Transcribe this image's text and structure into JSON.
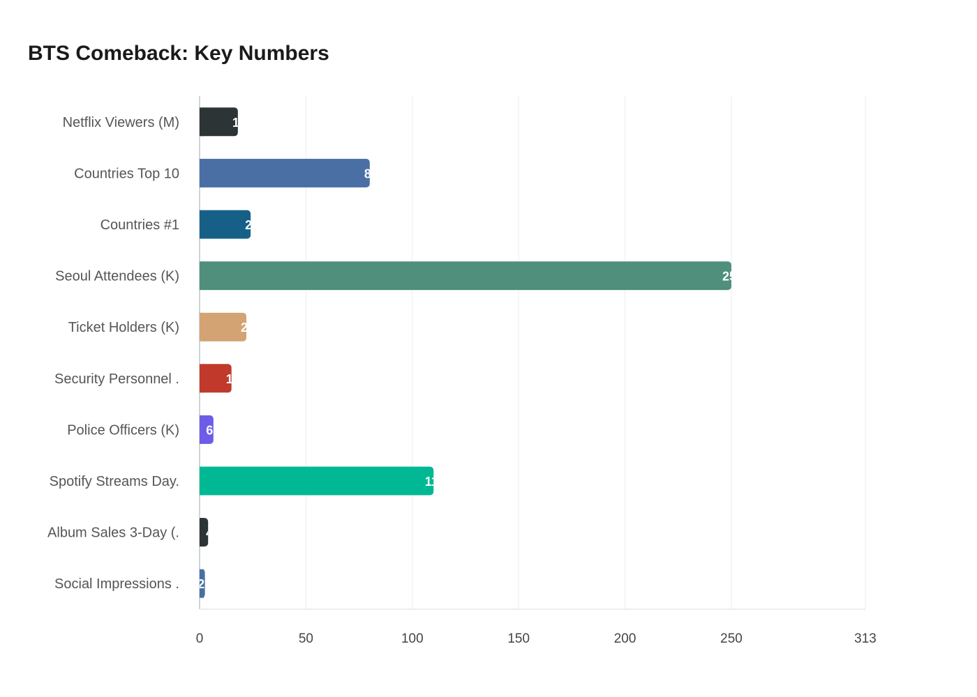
{
  "chart_data": {
    "type": "bar",
    "orientation": "horizontal",
    "title": "BTS Comeback: Key Numbers",
    "categories": [
      "Netflix Viewers (M)",
      "Countries Top 10",
      "Countries #1",
      "Seoul Attendees (K)",
      "Ticket Holders (K)",
      "Security Personnel .",
      "Police Officers (K)",
      "Spotify Streams Day.",
      "Album Sales 3-Day (.",
      "Social Impressions ."
    ],
    "values": [
      18,
      80,
      24,
      250,
      22,
      15,
      6.5,
      110,
      4,
      2.5
    ],
    "colors": [
      "#2d3436",
      "#4a6fa5",
      "#166088",
      "#4f8f7b",
      "#d4a373",
      "#c0392b",
      "#6c5ce7",
      "#00b894",
      "#2d3436",
      "#4a6fa5"
    ],
    "xticks": [
      0,
      50,
      100,
      150,
      200,
      250,
      313
    ],
    "xlim": [
      0,
      313
    ],
    "grid": true,
    "xlabel": "",
    "ylabel": ""
  }
}
